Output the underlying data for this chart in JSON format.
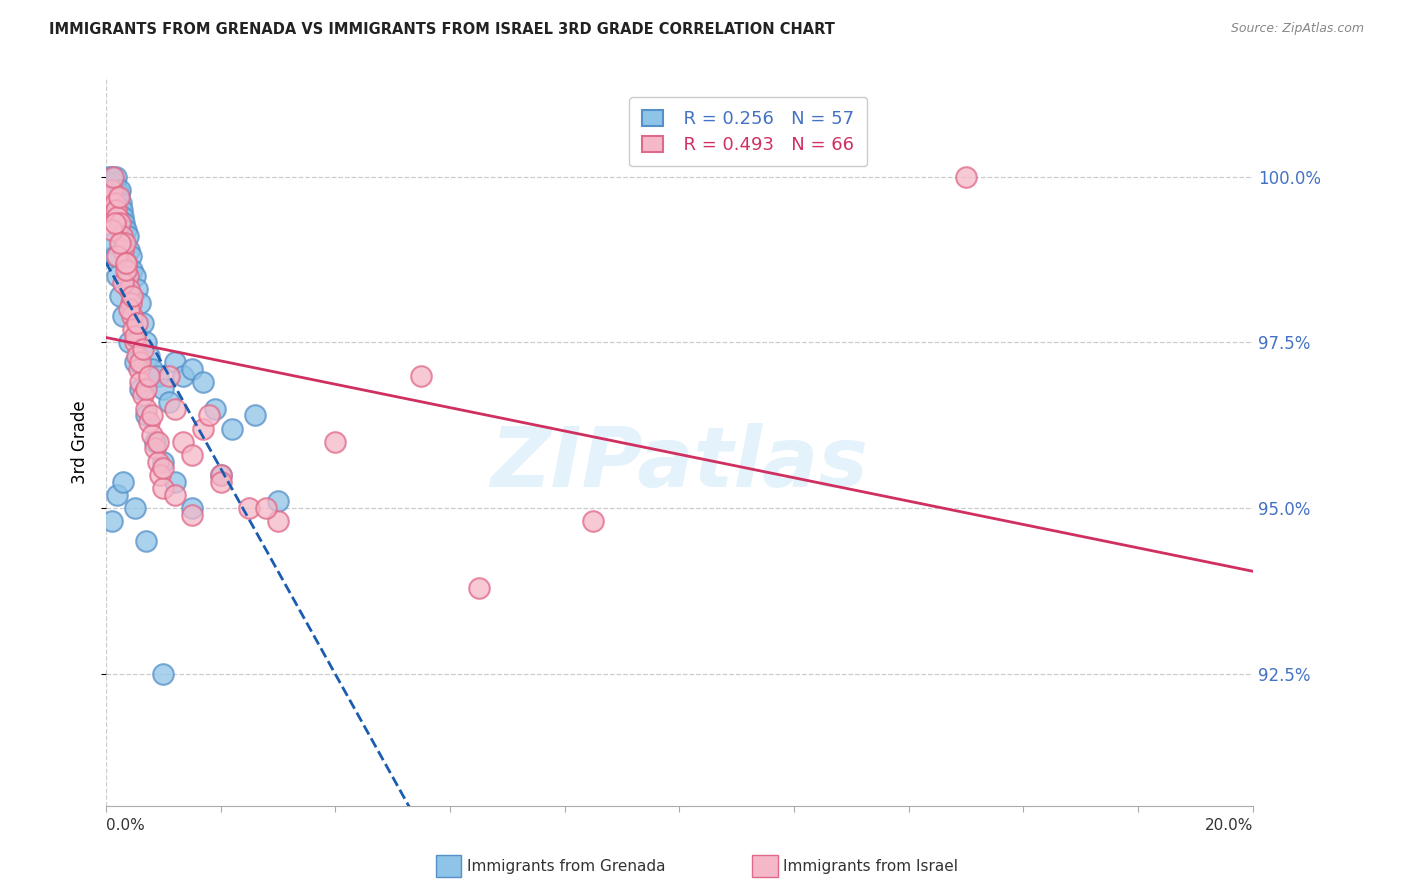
{
  "title": "IMMIGRANTS FROM GRENADA VS IMMIGRANTS FROM ISRAEL 3RD GRADE CORRELATION CHART",
  "source": "Source: ZipAtlas.com",
  "ylabel": "3rd Grade",
  "xlim": [
    0.0,
    20.0
  ],
  "ylim": [
    90.5,
    101.5
  ],
  "yticks": [
    92.5,
    95.0,
    97.5,
    100.0
  ],
  "ytick_labels": [
    "92.5%",
    "95.0%",
    "97.5%",
    "100.0%"
  ],
  "r_grenada": "R = 0.256",
  "n_grenada": "N = 57",
  "r_israel": "R = 0.493",
  "n_israel": "N = 66",
  "grenada_color": "#8ec4e8",
  "israel_color": "#f5b8c8",
  "grenada_edge": "#5590c8",
  "israel_edge": "#e06888",
  "blue_line_color": "#1a5cb0",
  "pink_line_color": "#d03060",
  "legend_label_blue": "Immigrants from Grenada",
  "legend_label_pink": "Immigrants from Israel",
  "grenada_x": [
    0.05,
    0.08,
    0.1,
    0.12,
    0.14,
    0.16,
    0.18,
    0.2,
    0.22,
    0.24,
    0.26,
    0.28,
    0.3,
    0.32,
    0.35,
    0.38,
    0.4,
    0.43,
    0.46,
    0.5,
    0.55,
    0.6,
    0.65,
    0.7,
    0.75,
    0.8,
    0.9,
    1.0,
    1.1,
    1.2,
    1.35,
    1.5,
    1.7,
    1.9,
    2.2,
    2.6,
    3.0,
    0.1,
    0.15,
    0.2,
    0.25,
    0.3,
    0.4,
    0.5,
    0.6,
    0.7,
    0.85,
    1.0,
    1.2,
    1.5,
    2.0,
    0.1,
    0.2,
    0.3,
    0.5,
    0.7,
    1.0
  ],
  "grenada_y": [
    100.0,
    99.9,
    100.0,
    99.85,
    99.8,
    99.9,
    100.0,
    99.7,
    99.75,
    99.8,
    99.6,
    99.5,
    99.4,
    99.3,
    99.2,
    99.1,
    98.9,
    98.8,
    98.6,
    98.5,
    98.3,
    98.1,
    97.8,
    97.5,
    97.3,
    97.1,
    97.0,
    96.8,
    96.6,
    97.2,
    97.0,
    97.1,
    96.9,
    96.5,
    96.2,
    96.4,
    95.1,
    99.0,
    98.8,
    98.5,
    98.2,
    97.9,
    97.5,
    97.2,
    96.8,
    96.4,
    96.0,
    95.7,
    95.4,
    95.0,
    95.5,
    94.8,
    95.2,
    95.4,
    95.0,
    94.5,
    92.5
  ],
  "israel_x": [
    0.05,
    0.08,
    0.1,
    0.12,
    0.15,
    0.18,
    0.2,
    0.22,
    0.25,
    0.28,
    0.3,
    0.33,
    0.35,
    0.38,
    0.4,
    0.43,
    0.45,
    0.48,
    0.5,
    0.55,
    0.58,
    0.6,
    0.65,
    0.7,
    0.75,
    0.8,
    0.85,
    0.9,
    0.95,
    1.0,
    1.1,
    1.2,
    1.35,
    1.5,
    1.7,
    2.0,
    2.5,
    3.0,
    4.0,
    5.5,
    8.5,
    15.0,
    0.1,
    0.2,
    0.3,
    0.4,
    0.5,
    0.6,
    0.7,
    0.8,
    0.9,
    1.0,
    1.2,
    1.5,
    2.0,
    2.8,
    0.35,
    0.45,
    0.55,
    0.65,
    0.75,
    0.25,
    1.8,
    6.5,
    0.15,
    0.35
  ],
  "israel_y": [
    99.5,
    99.7,
    99.8,
    100.0,
    99.6,
    99.5,
    99.4,
    99.7,
    99.3,
    99.1,
    98.9,
    99.0,
    98.7,
    98.5,
    98.3,
    98.1,
    97.9,
    97.7,
    97.5,
    97.3,
    97.1,
    96.9,
    96.7,
    96.5,
    96.3,
    96.1,
    95.9,
    95.7,
    95.5,
    95.3,
    97.0,
    96.5,
    96.0,
    95.8,
    96.2,
    95.5,
    95.0,
    94.8,
    96.0,
    97.0,
    94.8,
    100.0,
    99.2,
    98.8,
    98.4,
    98.0,
    97.6,
    97.2,
    96.8,
    96.4,
    96.0,
    95.6,
    95.2,
    94.9,
    95.4,
    95.0,
    98.6,
    98.2,
    97.8,
    97.4,
    97.0,
    99.0,
    96.4,
    93.8,
    99.3,
    98.7
  ]
}
